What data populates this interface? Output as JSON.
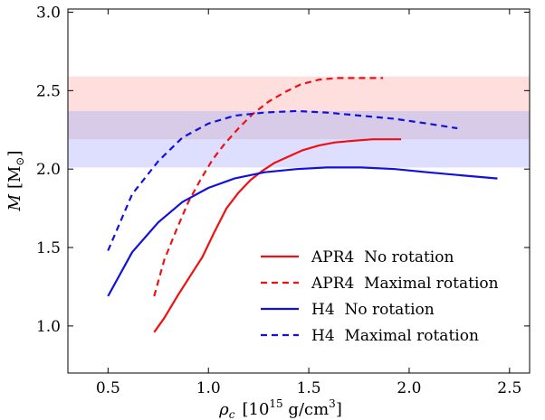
{
  "chart_data": {
    "type": "line",
    "xlabel": {
      "main": "ρ",
      "sub": "c",
      "unit_pre": "[10",
      "unit_sup": "15",
      "unit_post": " g/cm",
      "unit_sup2": "3",
      "unit_close": "]"
    },
    "ylabel": {
      "main": "M",
      "unit_pre": "[M",
      "unit_sub": "⊙",
      "unit_close": "]"
    },
    "xlim": [
      0.3,
      2.6
    ],
    "ylim": [
      0.7,
      3.02
    ],
    "xticks": [
      {
        "value": 0.5,
        "label": "0.5"
      },
      {
        "value": 1.0,
        "label": "1.0"
      },
      {
        "value": 1.5,
        "label": "1.5"
      },
      {
        "value": 2.0,
        "label": "2.0"
      },
      {
        "value": 2.5,
        "label": "2.5"
      }
    ],
    "yticks": [
      {
        "value": 1.0,
        "label": "1.0"
      },
      {
        "value": 1.5,
        "label": "1.5"
      },
      {
        "value": 2.0,
        "label": "2.0"
      },
      {
        "value": 2.5,
        "label": "2.5"
      },
      {
        "value": 3.0,
        "label": "3.0"
      }
    ],
    "grid": false,
    "legend_position": "lower-right",
    "bands": [
      {
        "y": [
          2.37,
          2.59
        ],
        "color": "#ff0000",
        "opacity": 0.13
      },
      {
        "y": [
          2.19,
          2.37
        ],
        "color": "#8a60b8",
        "opacity": 0.33
      },
      {
        "y": [
          2.01,
          2.19
        ],
        "color": "#0000ff",
        "opacity": 0.13
      }
    ],
    "series": [
      {
        "name": "APR4  No rotation",
        "color": "#ee1111",
        "style": "solid",
        "x": [
          0.73,
          0.78,
          0.85,
          0.92,
          0.97,
          1.03,
          1.09,
          1.15,
          1.21,
          1.27,
          1.33,
          1.4,
          1.47,
          1.55,
          1.63,
          1.72,
          1.82,
          1.96
        ],
        "y": [
          0.96,
          1.05,
          1.2,
          1.34,
          1.44,
          1.6,
          1.75,
          1.85,
          1.93,
          1.99,
          2.04,
          2.08,
          2.12,
          2.15,
          2.17,
          2.18,
          2.19,
          2.19
        ]
      },
      {
        "name": "APR4  Maximal rotation",
        "color": "#ee1111",
        "style": "dashed",
        "x": [
          0.73,
          0.78,
          0.84,
          0.9,
          0.96,
          1.02,
          1.08,
          1.15,
          1.22,
          1.3,
          1.38,
          1.46,
          1.55,
          1.64,
          1.73,
          1.81,
          1.87
        ],
        "y": [
          1.19,
          1.42,
          1.61,
          1.79,
          1.93,
          2.06,
          2.16,
          2.26,
          2.35,
          2.43,
          2.49,
          2.54,
          2.57,
          2.58,
          2.58,
          2.58,
          2.58
        ]
      },
      {
        "name": "H4  No rotation",
        "color": "#1111dd",
        "style": "solid",
        "x": [
          0.5,
          0.62,
          0.75,
          0.87,
          1.0,
          1.13,
          1.28,
          1.44,
          1.59,
          1.76,
          1.93,
          2.09,
          2.26,
          2.44
        ],
        "y": [
          1.19,
          1.47,
          1.66,
          1.79,
          1.88,
          1.94,
          1.98,
          2.0,
          2.01,
          2.01,
          2.0,
          1.98,
          1.96,
          1.94
        ]
      },
      {
        "name": "H4  Maximal rotation",
        "color": "#1111dd",
        "style": "dashed",
        "x": [
          0.5,
          0.62,
          0.75,
          0.87,
          1.0,
          1.13,
          1.28,
          1.44,
          1.59,
          1.76,
          1.93,
          2.09,
          2.24
        ],
        "y": [
          1.48,
          1.84,
          2.05,
          2.2,
          2.29,
          2.34,
          2.36,
          2.37,
          2.36,
          2.34,
          2.32,
          2.29,
          2.26
        ]
      }
    ]
  }
}
